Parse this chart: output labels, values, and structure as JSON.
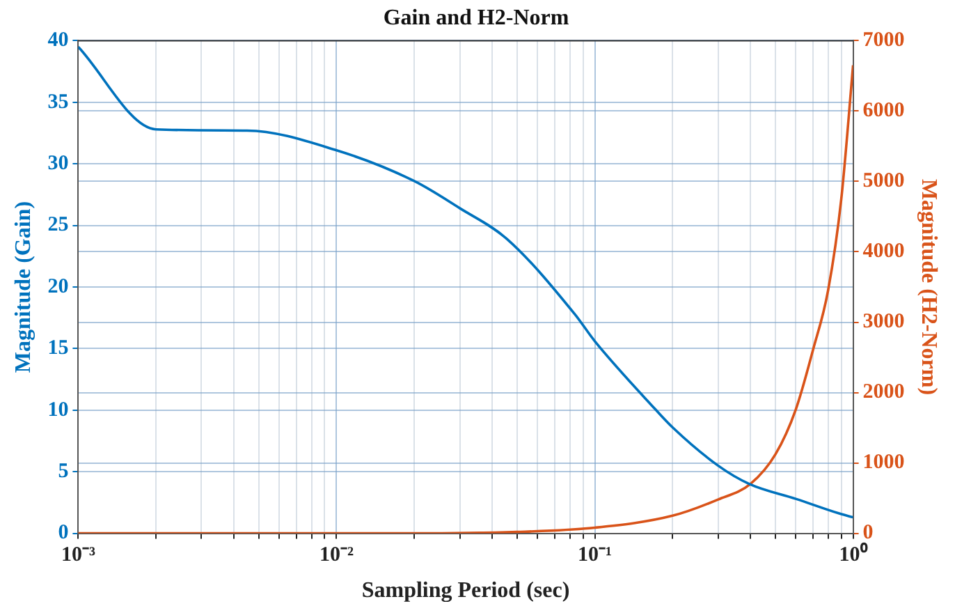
{
  "chart_data": {
    "type": "line",
    "title": "Gain and H2-Norm",
    "xlabel": "Sampling Period (sec)",
    "ylabel": "Magnitude (Gain)",
    "y2label": "Magnitude (H2-Norm)",
    "log": "x",
    "grid": true,
    "legend": false,
    "marker": "none",
    "line_style": "solid",
    "xlim": [
      0.001,
      1
    ],
    "xticks": [
      {
        "value": 0.001,
        "label": "10⁻³"
      },
      {
        "value": 0.002,
        "label": null
      },
      {
        "value": 0.003,
        "label": null
      },
      {
        "value": 0.004,
        "label": null
      },
      {
        "value": 0.005,
        "label": null
      },
      {
        "value": 0.006,
        "label": null
      },
      {
        "value": 0.007,
        "label": null
      },
      {
        "value": 0.008,
        "label": null
      },
      {
        "value": 0.009,
        "label": null
      },
      {
        "value": 0.01,
        "label": "10⁻²"
      },
      {
        "value": 0.02,
        "label": null
      },
      {
        "value": 0.03,
        "label": null
      },
      {
        "value": 0.04,
        "label": null
      },
      {
        "value": 0.05,
        "label": null
      },
      {
        "value": 0.06,
        "label": null
      },
      {
        "value": 0.07,
        "label": null
      },
      {
        "value": 0.08,
        "label": null
      },
      {
        "value": 0.09,
        "label": null
      },
      {
        "value": 0.1,
        "label": "10⁻¹"
      },
      {
        "value": 0.2,
        "label": null
      },
      {
        "value": 0.3,
        "label": null
      },
      {
        "value": 0.4,
        "label": null
      },
      {
        "value": 0.5,
        "label": null
      },
      {
        "value": 0.6,
        "label": null
      },
      {
        "value": 0.7,
        "label": null
      },
      {
        "value": 0.8,
        "label": null
      },
      {
        "value": 0.9,
        "label": null
      },
      {
        "value": 1,
        "label": "10⁰"
      }
    ],
    "ylim": [
      0,
      40
    ],
    "yticks": [
      0,
      5,
      10,
      15,
      20,
      25,
      30,
      35,
      40
    ],
    "y2lim": [
      0,
      7000
    ],
    "y2ticks": [
      0,
      1000,
      2000,
      3000,
      4000,
      5000,
      6000,
      7000
    ],
    "series": [
      {
        "color": "#0072bd",
        "x": [
          0.001,
          0.002,
          0.0045,
          0.01,
          0.02,
          0.03,
          0.0457,
          0.0836,
          0.1,
          0.171,
          0.2,
          0.3,
          0.397,
          0.6,
          0.887,
          1
        ],
        "values": [
          39.5,
          32.8,
          32.7,
          31.1,
          28.6,
          26.4,
          23.9,
          17.8,
          15.6,
          10.1,
          8.6,
          5.5,
          4.0,
          2.8,
          1.6,
          1.3
        ]
      },
      {
        "color": "#d95319",
        "axis": "y2",
        "x": [
          0.001,
          0.01,
          0.02,
          0.05,
          0.1,
          0.2,
          0.3,
          0.4,
          0.5,
          0.6,
          0.7,
          0.8,
          0.9,
          1
        ],
        "values": [
          0,
          0,
          0,
          20,
          80,
          250,
          480,
          700,
          1120,
          1760,
          2610,
          3450,
          4750,
          6650
        ]
      }
    ]
  }
}
